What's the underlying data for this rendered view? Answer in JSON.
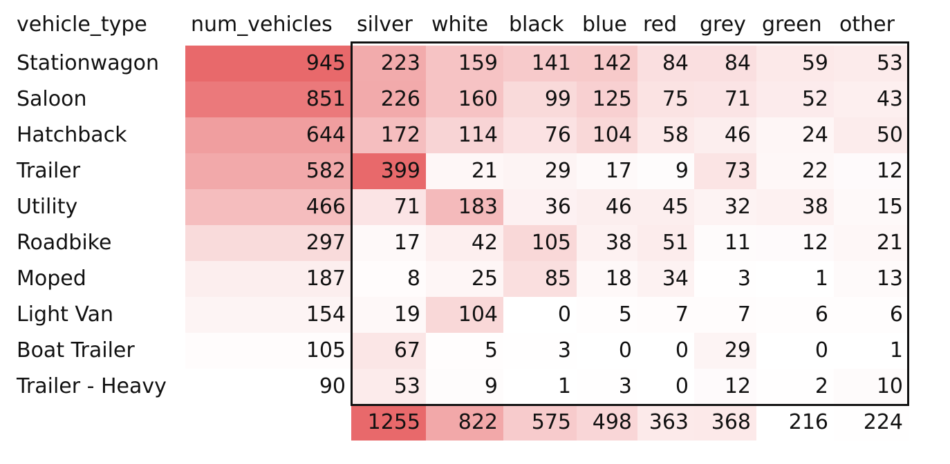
{
  "chart_data": {
    "type": "table",
    "row_header_label": "vehicle_type",
    "total_column_label": "num_vehicles",
    "columns": [
      "silver",
      "white",
      "black",
      "blue",
      "red",
      "grey",
      "green",
      "other"
    ],
    "rows": [
      {
        "label": "Stationwagon",
        "total": 945,
        "values": [
          223,
          159,
          141,
          142,
          84,
          84,
          59,
          53
        ]
      },
      {
        "label": "Saloon",
        "total": 851,
        "values": [
          226,
          160,
          99,
          125,
          75,
          71,
          52,
          43
        ]
      },
      {
        "label": "Hatchback",
        "total": 644,
        "values": [
          172,
          114,
          76,
          104,
          58,
          46,
          24,
          50
        ]
      },
      {
        "label": "Trailer",
        "total": 582,
        "values": [
          399,
          21,
          29,
          17,
          9,
          73,
          22,
          12
        ]
      },
      {
        "label": "Utility",
        "total": 466,
        "values": [
          71,
          183,
          36,
          46,
          45,
          32,
          38,
          15
        ]
      },
      {
        "label": "Roadbike",
        "total": 297,
        "values": [
          17,
          42,
          105,
          38,
          51,
          11,
          12,
          21
        ]
      },
      {
        "label": "Moped",
        "total": 187,
        "values": [
          8,
          25,
          85,
          18,
          34,
          3,
          1,
          13
        ]
      },
      {
        "label": "Light Van",
        "total": 154,
        "values": [
          19,
          104,
          0,
          5,
          7,
          7,
          6,
          6
        ]
      },
      {
        "label": "Boat Trailer",
        "total": 105,
        "values": [
          67,
          5,
          3,
          0,
          0,
          29,
          0,
          1
        ]
      },
      {
        "label": "Trailer - Heavy",
        "total": 90,
        "values": [
          53,
          9,
          1,
          3,
          0,
          12,
          2,
          10
        ]
      }
    ],
    "column_totals": [
      1255,
      822,
      575,
      498,
      363,
      368,
      216,
      224
    ],
    "color_scale": {
      "low": "#ffffff",
      "high": "#e8696b"
    },
    "inner_matrix_outlined": true
  }
}
